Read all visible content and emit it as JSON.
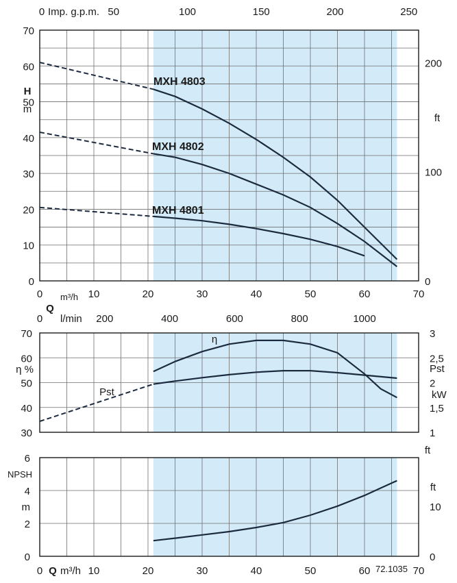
{
  "chart_data": [
    {
      "type": "line",
      "xlabel": "Q",
      "x_unit": "m³/h",
      "xlim": [
        0,
        70
      ],
      "x_ticks": [
        "0",
        "10",
        "20",
        "30",
        "40",
        "50",
        "60",
        "70"
      ],
      "top_axis_label": "Imp. g.p.m.",
      "top_ticks": [
        "0",
        "50",
        "100",
        "150",
        "200",
        "250"
      ],
      "top_tick_values": [
        0,
        50,
        100,
        150,
        200,
        250
      ],
      "ylabel": "H",
      "y_unit": "m",
      "ylim": [
        0,
        70
      ],
      "y_ticks": [
        "0",
        "10",
        "20",
        "30",
        "40",
        "50",
        "60",
        "70"
      ],
      "right_unit": "ft",
      "right_ticks": [
        "0",
        "100",
        "200"
      ],
      "right_tick_values": [
        0,
        100,
        200
      ],
      "grid": true,
      "shaded_range": [
        21,
        66
      ],
      "series": [
        {
          "name": "MXH 4803",
          "x": [
            21,
            25,
            30,
            35,
            40,
            45,
            50,
            55,
            60,
            66
          ],
          "y": [
            53.5,
            51.5,
            48.0,
            44.0,
            39.5,
            34.5,
            29.0,
            22.5,
            15.0,
            6.0
          ],
          "extrapolated": {
            "x": [
              0,
              21
            ],
            "y": [
              61,
              53.5
            ]
          }
        },
        {
          "name": "MXH 4802",
          "x": [
            21,
            25,
            30,
            35,
            40,
            45,
            50,
            55,
            60,
            66
          ],
          "y": [
            35.5,
            34.5,
            32.5,
            30.0,
            27.0,
            24.0,
            20.5,
            16.0,
            11.0,
            4.0
          ],
          "extrapolated": {
            "x": [
              0,
              21
            ],
            "y": [
              41.5,
              35.5
            ]
          }
        },
        {
          "name": "MXH 4801",
          "x": [
            21,
            25,
            30,
            35,
            40,
            45,
            50,
            55,
            60
          ],
          "y": [
            18.0,
            17.5,
            16.8,
            15.8,
            14.6,
            13.2,
            11.6,
            9.6,
            7.0
          ],
          "extrapolated": {
            "x": [
              0,
              21
            ],
            "y": [
              20.5,
              18.0
            ]
          }
        }
      ]
    },
    {
      "type": "line",
      "top_axis_label": "l/min",
      "top_ticks": [
        "0",
        "200",
        "400",
        "600",
        "800",
        "1000"
      ],
      "top_tick_values": [
        0,
        200,
        400,
        600,
        800,
        1000
      ],
      "x_symbol": "Q",
      "xlim": [
        0,
        70
      ],
      "ylabel": "η %",
      "ylim": [
        30,
        70
      ],
      "y_ticks": [
        "30",
        "40",
        "50",
        "60",
        "70"
      ],
      "right_labels": [
        "Pst",
        "kW"
      ],
      "right_ticks": [
        "1",
        "1,5",
        "2",
        "2,5",
        "3"
      ],
      "right_tick_values": [
        1,
        1.5,
        2,
        2.5,
        3
      ],
      "right_lim": [
        1,
        3
      ],
      "grid": true,
      "shaded_range": [
        21,
        66
      ],
      "series": [
        {
          "name": "η",
          "x": [
            21,
            25,
            30,
            35,
            40,
            45,
            50,
            55,
            60,
            63,
            66
          ],
          "y": [
            54.5,
            58.5,
            62.5,
            65.5,
            67.0,
            67.0,
            65.5,
            62.0,
            53.5,
            47.5,
            44.0
          ]
        },
        {
          "name": "Pst",
          "unit": "kW",
          "x": [
            21,
            25,
            30,
            35,
            40,
            45,
            50,
            55,
            60,
            66
          ],
          "y": [
            1.97,
            2.03,
            2.1,
            2.16,
            2.21,
            2.24,
            2.24,
            2.2,
            2.15,
            2.09
          ],
          "extrapolated": {
            "x": [
              0,
              21
            ],
            "y": [
              1.22,
              1.97
            ]
          }
        }
      ]
    },
    {
      "type": "line",
      "xlabel": "Q",
      "x_unit": "m³/h",
      "xlim": [
        0,
        70
      ],
      "x_ticks": [
        "0",
        "10",
        "20",
        "30",
        "40",
        "50",
        "60",
        "70"
      ],
      "ylabel": "NPSH",
      "y_unit": "m",
      "ylim": [
        0,
        6
      ],
      "y_ticks": [
        "0",
        "2",
        "4",
        "6"
      ],
      "right_units": [
        "ft",
        "ft"
      ],
      "right_ticks": [
        "0",
        "10"
      ],
      "right_tick_values": [
        0,
        10
      ],
      "grid": true,
      "shaded_range": [
        21,
        66
      ],
      "series": [
        {
          "name": "NPSH",
          "x": [
            21,
            25,
            30,
            35,
            40,
            45,
            50,
            55,
            60,
            63,
            66
          ],
          "y": [
            0.95,
            1.1,
            1.3,
            1.5,
            1.75,
            2.05,
            2.5,
            3.05,
            3.7,
            4.15,
            4.6
          ]
        }
      ],
      "annotation": "72.1035"
    }
  ]
}
